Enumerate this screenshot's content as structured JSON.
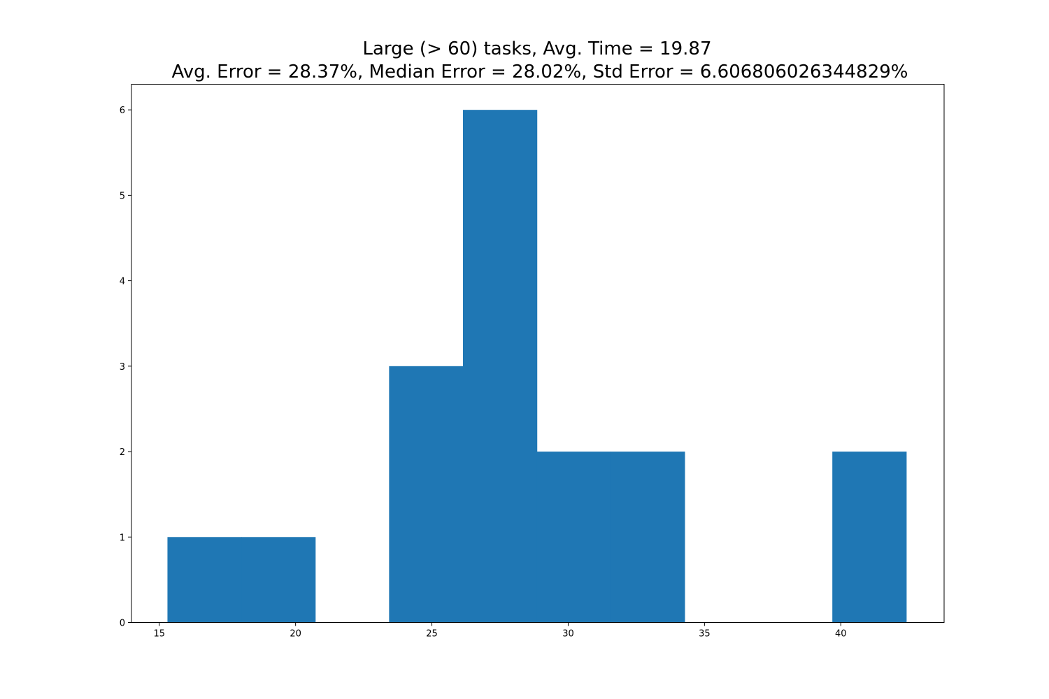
{
  "chart_data": {
    "type": "bar",
    "subtype": "histogram",
    "title": "Large (> 60) tasks, Avg. Time = 19.87",
    "subtitle": "Avg. Error = 28.37%, Median Error = 28.02%, Std Error = 6.606806026344829%",
    "xlabel": "",
    "ylabel": "",
    "xlim": [
      13.98,
      43.79
    ],
    "ylim": [
      0,
      6.3
    ],
    "xticks": [
      15,
      20,
      25,
      30,
      35,
      40
    ],
    "yticks": [
      0,
      1,
      2,
      3,
      4,
      5,
      6
    ],
    "grid": false,
    "bar_color": "#1f77b4",
    "bins": [
      {
        "x0": 15.3,
        "x1": 18.01,
        "count": 1
      },
      {
        "x0": 18.01,
        "x1": 20.72,
        "count": 1
      },
      {
        "x0": 20.72,
        "x1": 23.43,
        "count": 0
      },
      {
        "x0": 23.43,
        "x1": 26.14,
        "count": 3
      },
      {
        "x0": 26.14,
        "x1": 28.85,
        "count": 6
      },
      {
        "x0": 28.85,
        "x1": 31.56,
        "count": 2
      },
      {
        "x0": 31.56,
        "x1": 34.27,
        "count": 2
      },
      {
        "x0": 34.27,
        "x1": 36.98,
        "count": 0
      },
      {
        "x0": 36.98,
        "x1": 39.69,
        "count": 0
      },
      {
        "x0": 39.69,
        "x1": 42.4,
        "count": 2
      }
    ]
  }
}
